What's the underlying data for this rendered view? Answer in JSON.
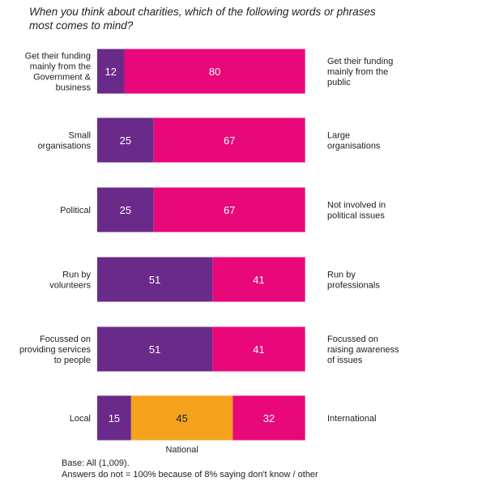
{
  "question": "When you think about charities, which of the following words or phrases most comes to mind?",
  "colors": {
    "left": "#6a2a8a",
    "right": "#e8087a",
    "middle": "#f5a31d"
  },
  "chart_data": {
    "type": "bar",
    "orientation": "horizontal",
    "stacked": true,
    "scale_max": 100,
    "rows": [
      {
        "left_label": [
          "Get their funding",
          "mainly from the",
          "Government &",
          "business"
        ],
        "right_label": [
          "Get their funding",
          "mainly from the",
          "public"
        ],
        "segments": [
          {
            "value": 12,
            "color": "left"
          },
          {
            "value": 80,
            "color": "right"
          }
        ]
      },
      {
        "left_label": [
          "Small",
          "organisations"
        ],
        "right_label": [
          "Large",
          "organisations"
        ],
        "segments": [
          {
            "value": 25,
            "color": "left"
          },
          {
            "value": 67,
            "color": "right"
          }
        ]
      },
      {
        "left_label": [
          "Political"
        ],
        "right_label": [
          "Not involved in",
          "political issues"
        ],
        "segments": [
          {
            "value": 25,
            "color": "left"
          },
          {
            "value": 67,
            "color": "right"
          }
        ]
      },
      {
        "left_label": [
          "Run by",
          "volunteers"
        ],
        "right_label": [
          "Run by",
          "professionals"
        ],
        "segments": [
          {
            "value": 51,
            "color": "left"
          },
          {
            "value": 41,
            "color": "right"
          }
        ]
      },
      {
        "left_label": [
          "Focussed on",
          "providing services",
          "to people"
        ],
        "right_label": [
          "Focussed on",
          "raising awareness",
          "of issues"
        ],
        "segments": [
          {
            "value": 51,
            "color": "left"
          },
          {
            "value": 41,
            "color": "right"
          }
        ]
      },
      {
        "left_label": [
          "Local"
        ],
        "right_label": [
          "International"
        ],
        "middle_label": "National",
        "segments": [
          {
            "value": 15,
            "color": "left"
          },
          {
            "value": 45,
            "color": "middle"
          },
          {
            "value": 32,
            "color": "right"
          }
        ]
      }
    ]
  },
  "footnote": {
    "line1": "Base: All (1,009).",
    "line2": "Answers do not = 100% because of 8% saying don't know / other"
  }
}
